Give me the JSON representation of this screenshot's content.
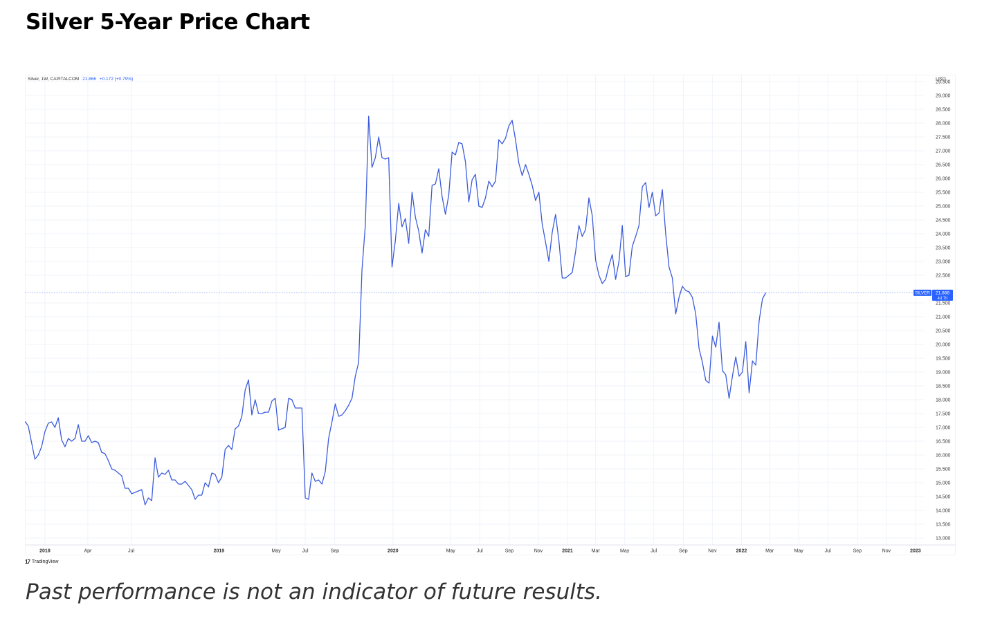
{
  "page": {
    "title": "Silver 5-Year Price Chart",
    "footnote": "Past performance is not an indicator of future results."
  },
  "chart_header": {
    "symbol": "Silver, 1W, CAPITALCOM",
    "last": "21.866",
    "change": "+0.172 (+0.79%)"
  },
  "branding": {
    "logo_icon": "tradingview-logo-icon",
    "logo_text": "TradingView"
  },
  "price_tag": {
    "label": "SILVER",
    "value": "21.866",
    "countdown": "4d 7h"
  },
  "colors": {
    "line": "#3b5bdb",
    "tag": "#2962ff",
    "grid": "#f0f3fa",
    "axis_text": "#333333"
  },
  "chart_data": {
    "type": "line",
    "title": "Silver 5-Year Price Chart",
    "xlabel": "",
    "ylabel": "USD",
    "currency": "USD",
    "x_range": [
      "2017-11-20",
      "2023-01-20"
    ],
    "ylim": [
      12.75,
      29.75
    ],
    "y_ticks": [
      13.0,
      13.5,
      14.0,
      14.5,
      15.0,
      15.5,
      16.0,
      16.5,
      17.0,
      17.5,
      18.0,
      18.5,
      19.0,
      19.5,
      20.0,
      20.5,
      21.0,
      21.5,
      22.5,
      23.0,
      23.5,
      24.0,
      24.5,
      25.0,
      25.5,
      26.0,
      26.5,
      27.0,
      27.5,
      28.0,
      28.5,
      29.0,
      29.5
    ],
    "x_ticks": [
      {
        "date": "2018-01-01",
        "label": "2018",
        "bold": true
      },
      {
        "date": "2018-04-01",
        "label": "Apr"
      },
      {
        "date": "2018-07-01",
        "label": "Jul"
      },
      {
        "date": "2019-01-01",
        "label": "2019",
        "bold": true
      },
      {
        "date": "2019-05-01",
        "label": "May"
      },
      {
        "date": "2019-07-01",
        "label": "Jul"
      },
      {
        "date": "2019-09-01",
        "label": "Sep"
      },
      {
        "date": "2020-01-01",
        "label": "2020",
        "bold": true
      },
      {
        "date": "2020-05-01",
        "label": "May"
      },
      {
        "date": "2020-07-01",
        "label": "Jul"
      },
      {
        "date": "2020-09-01",
        "label": "Sep"
      },
      {
        "date": "2020-11-01",
        "label": "Nov"
      },
      {
        "date": "2021-01-01",
        "label": "2021",
        "bold": true
      },
      {
        "date": "2021-03-01",
        "label": "Mar"
      },
      {
        "date": "2021-05-01",
        "label": "May"
      },
      {
        "date": "2021-07-01",
        "label": "Jul"
      },
      {
        "date": "2021-09-01",
        "label": "Sep"
      },
      {
        "date": "2021-11-01",
        "label": "Nov"
      },
      {
        "date": "2022-01-01",
        "label": "2022",
        "bold": true
      },
      {
        "date": "2022-03-01",
        "label": "Mar"
      },
      {
        "date": "2022-05-01",
        "label": "May"
      },
      {
        "date": "2022-07-01",
        "label": "Jul"
      },
      {
        "date": "2022-09-01",
        "label": "Sep"
      },
      {
        "date": "2022-11-01",
        "label": "Nov"
      },
      {
        "date": "2023-01-01",
        "label": "2023",
        "bold": true
      }
    ],
    "last_value": 21.866,
    "grid": true,
    "series": [
      {
        "points": [
          [
            "2017-11-20",
            17.22
          ],
          [
            "2017-11-27",
            17.05
          ],
          [
            "2017-12-04",
            16.45
          ],
          [
            "2017-12-11",
            15.85
          ],
          [
            "2017-12-18",
            16.0
          ],
          [
            "2017-12-25",
            16.3
          ],
          [
            "2018-01-01",
            16.85
          ],
          [
            "2018-01-08",
            17.15
          ],
          [
            "2018-01-15",
            17.2
          ],
          [
            "2018-01-22",
            17.0
          ],
          [
            "2018-01-29",
            17.35
          ],
          [
            "2018-02-05",
            16.55
          ],
          [
            "2018-02-12",
            16.3
          ],
          [
            "2018-02-19",
            16.6
          ],
          [
            "2018-02-26",
            16.5
          ],
          [
            "2018-03-05",
            16.6
          ],
          [
            "2018-03-12",
            17.1
          ],
          [
            "2018-03-19",
            16.5
          ],
          [
            "2018-03-26",
            16.5
          ],
          [
            "2018-04-02",
            16.7
          ],
          [
            "2018-04-09",
            16.45
          ],
          [
            "2018-04-16",
            16.5
          ],
          [
            "2018-04-23",
            16.45
          ],
          [
            "2018-04-30",
            16.1
          ],
          [
            "2018-05-07",
            16.05
          ],
          [
            "2018-05-14",
            15.8
          ],
          [
            "2018-05-21",
            15.5
          ],
          [
            "2018-05-28",
            15.45
          ],
          [
            "2018-06-04",
            15.35
          ],
          [
            "2018-06-11",
            15.25
          ],
          [
            "2018-06-18",
            14.8
          ],
          [
            "2018-06-25",
            14.8
          ],
          [
            "2018-07-02",
            14.6
          ],
          [
            "2018-07-09",
            14.65
          ],
          [
            "2018-07-16",
            14.7
          ],
          [
            "2018-07-23",
            14.75
          ],
          [
            "2018-07-30",
            14.2
          ],
          [
            "2018-08-06",
            14.45
          ],
          [
            "2018-08-13",
            14.35
          ],
          [
            "2018-08-20",
            15.9
          ],
          [
            "2018-08-27",
            15.2
          ],
          [
            "2018-09-03",
            15.35
          ],
          [
            "2018-09-10",
            15.3
          ],
          [
            "2018-09-17",
            15.45
          ],
          [
            "2018-09-24",
            15.1
          ],
          [
            "2018-10-01",
            15.1
          ],
          [
            "2018-10-08",
            14.95
          ],
          [
            "2018-10-15",
            14.95
          ],
          [
            "2018-10-22",
            15.05
          ],
          [
            "2018-10-29",
            14.9
          ],
          [
            "2018-11-05",
            14.75
          ],
          [
            "2018-11-12",
            14.4
          ],
          [
            "2018-11-19",
            14.55
          ],
          [
            "2018-11-26",
            14.55
          ],
          [
            "2018-12-03",
            15.0
          ],
          [
            "2018-12-10",
            14.85
          ],
          [
            "2018-12-17",
            15.35
          ],
          [
            "2018-12-24",
            15.3
          ],
          [
            "2018-12-31",
            15.0
          ],
          [
            "2019-01-07",
            15.2
          ],
          [
            "2019-01-14",
            16.2
          ],
          [
            "2019-01-21",
            16.35
          ],
          [
            "2019-01-28",
            16.2
          ],
          [
            "2019-02-04",
            16.95
          ],
          [
            "2019-02-11",
            17.05
          ],
          [
            "2019-02-18",
            17.4
          ],
          [
            "2019-02-25",
            18.35
          ],
          [
            "2019-03-04",
            18.72
          ],
          [
            "2019-03-11",
            17.45
          ],
          [
            "2019-03-18",
            18.0
          ],
          [
            "2019-03-25",
            17.5
          ],
          [
            "2019-04-01",
            17.5
          ],
          [
            "2019-04-08",
            17.55
          ],
          [
            "2019-04-15",
            17.55
          ],
          [
            "2019-04-22",
            17.95
          ],
          [
            "2019-04-29",
            18.05
          ],
          [
            "2019-05-06",
            16.9
          ],
          [
            "2019-05-13",
            16.95
          ],
          [
            "2019-05-20",
            17.0
          ],
          [
            "2019-05-27",
            18.05
          ],
          [
            "2019-06-03",
            18.0
          ],
          [
            "2019-06-10",
            17.7
          ],
          [
            "2019-06-17",
            17.7
          ],
          [
            "2019-06-24",
            17.7
          ],
          [
            "2019-07-01",
            14.45
          ],
          [
            "2019-07-08",
            14.4
          ],
          [
            "2019-07-15",
            15.35
          ],
          [
            "2019-07-22",
            15.05
          ],
          [
            "2019-07-29",
            15.1
          ],
          [
            "2019-08-05",
            14.95
          ],
          [
            "2019-08-12",
            15.4
          ],
          [
            "2019-08-19",
            16.6
          ],
          [
            "2019-08-26",
            17.2
          ],
          [
            "2019-09-02",
            17.85
          ],
          [
            "2019-09-09",
            17.4
          ],
          [
            "2019-09-16",
            17.45
          ],
          [
            "2019-09-23",
            17.6
          ],
          [
            "2019-09-30",
            17.8
          ],
          [
            "2019-10-07",
            18.05
          ],
          [
            "2019-10-14",
            18.85
          ],
          [
            "2019-10-21",
            19.35
          ],
          [
            "2019-10-28",
            22.7
          ],
          [
            "2019-11-04",
            24.3
          ],
          [
            "2019-11-11",
            28.25
          ],
          [
            "2019-11-18",
            26.4
          ],
          [
            "2019-11-25",
            26.75
          ],
          [
            "2019-12-02",
            27.5
          ],
          [
            "2019-12-09",
            26.75
          ],
          [
            "2019-12-16",
            26.7
          ],
          [
            "2019-12-23",
            26.75
          ],
          [
            "2019-12-30",
            22.8
          ],
          [
            "2020-01-06",
            23.75
          ],
          [
            "2020-01-13",
            25.1
          ],
          [
            "2020-01-20",
            24.25
          ],
          [
            "2020-01-27",
            24.55
          ],
          [
            "2020-02-03",
            23.65
          ],
          [
            "2020-02-10",
            25.5
          ],
          [
            "2020-02-17",
            24.6
          ],
          [
            "2020-02-24",
            24.1
          ],
          [
            "2020-03-02",
            23.3
          ],
          [
            "2020-03-09",
            24.15
          ],
          [
            "2020-03-16",
            23.9
          ],
          [
            "2020-03-23",
            25.75
          ],
          [
            "2020-03-30",
            25.8
          ],
          [
            "2020-04-06",
            26.35
          ],
          [
            "2020-04-13",
            25.35
          ],
          [
            "2020-04-20",
            24.7
          ],
          [
            "2020-04-27",
            25.4
          ],
          [
            "2020-05-04",
            26.95
          ],
          [
            "2020-05-11",
            26.85
          ],
          [
            "2020-05-18",
            27.3
          ],
          [
            "2020-05-25",
            27.25
          ],
          [
            "2020-06-01",
            26.6
          ],
          [
            "2020-06-08",
            25.15
          ],
          [
            "2020-06-15",
            25.95
          ],
          [
            "2020-06-22",
            26.15
          ],
          [
            "2020-06-29",
            25.0
          ],
          [
            "2020-07-06",
            24.95
          ],
          [
            "2020-07-13",
            25.3
          ],
          [
            "2020-07-20",
            25.9
          ],
          [
            "2020-07-27",
            25.7
          ],
          [
            "2020-08-03",
            25.9
          ],
          [
            "2020-08-10",
            27.4
          ],
          [
            "2020-08-17",
            27.25
          ],
          [
            "2020-08-24",
            27.45
          ],
          [
            "2020-08-31",
            27.9
          ],
          [
            "2020-09-07",
            28.1
          ],
          [
            "2020-09-14",
            27.4
          ],
          [
            "2020-09-21",
            26.55
          ],
          [
            "2020-09-28",
            26.1
          ],
          [
            "2020-10-05",
            26.5
          ],
          [
            "2020-10-12",
            26.15
          ],
          [
            "2020-10-19",
            25.75
          ],
          [
            "2020-10-26",
            25.2
          ],
          [
            "2020-11-02",
            25.5
          ],
          [
            "2020-11-09",
            24.35
          ],
          [
            "2020-11-16",
            23.7
          ],
          [
            "2020-11-23",
            23.0
          ],
          [
            "2020-11-30",
            24.05
          ],
          [
            "2020-12-07",
            24.7
          ],
          [
            "2020-12-14",
            23.75
          ],
          [
            "2020-12-21",
            22.4
          ],
          [
            "2020-12-28",
            22.4
          ],
          [
            "2021-01-04",
            22.5
          ],
          [
            "2021-01-11",
            22.6
          ],
          [
            "2021-01-18",
            23.35
          ],
          [
            "2021-01-25",
            24.3
          ],
          [
            "2021-02-01",
            23.9
          ],
          [
            "2021-02-08",
            24.15
          ],
          [
            "2021-02-15",
            25.3
          ],
          [
            "2021-02-22",
            24.65
          ],
          [
            "2021-03-01",
            23.05
          ],
          [
            "2021-03-08",
            22.5
          ],
          [
            "2021-03-15",
            22.2
          ],
          [
            "2021-03-22",
            22.35
          ],
          [
            "2021-03-29",
            22.85
          ],
          [
            "2021-04-05",
            23.25
          ],
          [
            "2021-04-12",
            22.35
          ],
          [
            "2021-04-19",
            23.0
          ],
          [
            "2021-04-26",
            24.3
          ],
          [
            "2021-05-03",
            22.45
          ],
          [
            "2021-05-10",
            22.5
          ],
          [
            "2021-05-17",
            23.55
          ],
          [
            "2021-05-24",
            23.9
          ],
          [
            "2021-05-31",
            24.3
          ],
          [
            "2021-06-07",
            25.7
          ],
          [
            "2021-06-14",
            25.85
          ],
          [
            "2021-06-21",
            24.95
          ],
          [
            "2021-06-28",
            25.5
          ],
          [
            "2021-07-05",
            24.65
          ],
          [
            "2021-07-12",
            24.75
          ],
          [
            "2021-07-19",
            25.6
          ],
          [
            "2021-07-26",
            24.0
          ],
          [
            "2021-08-02",
            22.8
          ],
          [
            "2021-08-09",
            22.4
          ],
          [
            "2021-08-16",
            21.1
          ],
          [
            "2021-08-23",
            21.7
          ],
          [
            "2021-08-30",
            22.1
          ],
          [
            "2021-09-06",
            21.95
          ],
          [
            "2021-09-13",
            21.9
          ],
          [
            "2021-09-20",
            21.7
          ],
          [
            "2021-09-27",
            21.1
          ],
          [
            "2021-10-04",
            19.85
          ],
          [
            "2021-10-11",
            19.35
          ],
          [
            "2021-10-18",
            18.7
          ],
          [
            "2021-10-25",
            18.6
          ],
          [
            "2021-11-01",
            20.3
          ],
          [
            "2021-11-08",
            19.9
          ],
          [
            "2021-11-15",
            20.8
          ],
          [
            "2021-11-22",
            19.05
          ],
          [
            "2021-11-29",
            18.9
          ],
          [
            "2021-12-06",
            18.05
          ],
          [
            "2021-12-13",
            18.85
          ],
          [
            "2021-12-20",
            19.55
          ],
          [
            "2021-12-27",
            18.85
          ],
          [
            "2022-01-03",
            19.0
          ],
          [
            "2022-01-10",
            20.1
          ],
          [
            "2022-01-17",
            18.25
          ],
          [
            "2022-01-24",
            19.4
          ],
          [
            "2022-01-31",
            19.25
          ],
          [
            "2022-02-07",
            20.85
          ],
          [
            "2022-02-14",
            21.65
          ],
          [
            "2022-02-21",
            21.866
          ]
        ]
      }
    ]
  }
}
